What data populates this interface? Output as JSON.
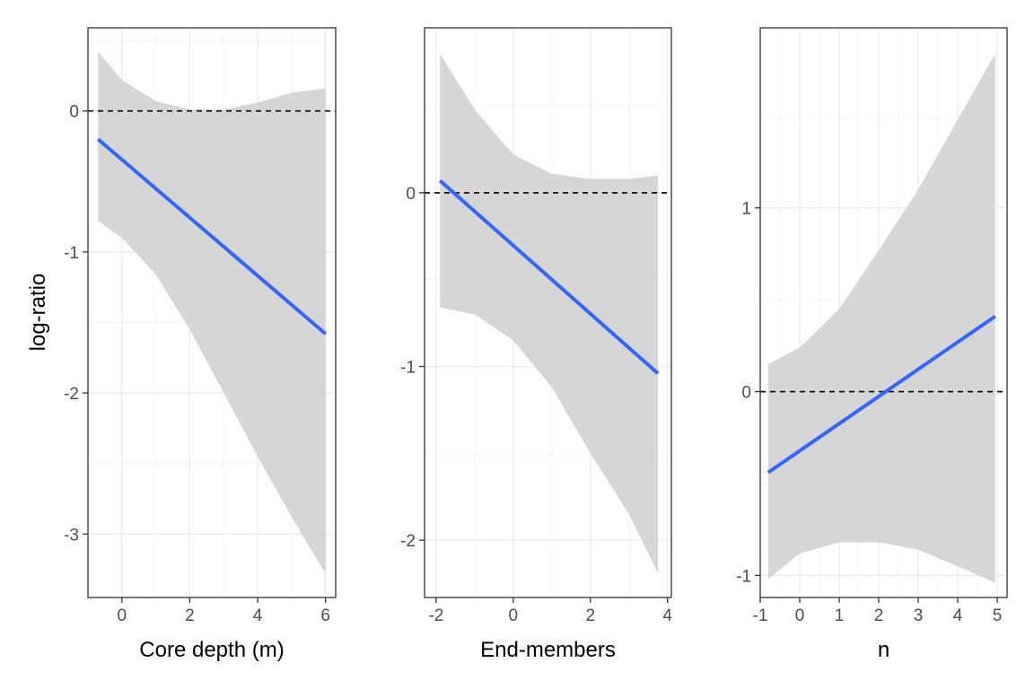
{
  "figure": {
    "ylabel": "log-ratio"
  },
  "colors": {
    "line": "#3366ff",
    "ribbon": "#d6d6d6",
    "grid_major": "#ebebeb",
    "grid_minor": "#f4f4f4",
    "reference": "#000000",
    "border": "#333333"
  },
  "chart_data": [
    {
      "type": "line",
      "xlabel": "Core depth (m)",
      "ylabel": "log-ratio",
      "xlim": [
        -1.0,
        6.3
      ],
      "ylim": [
        -3.45,
        0.59
      ],
      "xticks": [
        0,
        2,
        4,
        6
      ],
      "xtick_labels": [
        "0",
        "2",
        "4",
        "6"
      ],
      "yticks": [
        0,
        -1,
        -2,
        -3
      ],
      "ytick_labels": [
        "0",
        "-1",
        "-2",
        "-3"
      ],
      "xminor": [
        -1,
        1,
        3,
        5
      ],
      "yminor": [
        0.5,
        -0.5,
        -1.5,
        -2.5
      ],
      "reference_y": 0,
      "series": [
        {
          "x": [
            -0.7,
            6.0
          ],
          "y": [
            -0.2,
            -1.58
          ]
        }
      ],
      "ribbon": {
        "x": [
          -0.7,
          0.0,
          1.0,
          2.0,
          3.0,
          4.0,
          5.0,
          6.0
        ],
        "upper": [
          0.42,
          0.22,
          0.07,
          0.01,
          0.01,
          0.06,
          0.13,
          0.16
        ],
        "lower": [
          -0.78,
          -0.9,
          -1.16,
          -1.55,
          -2.0,
          -2.45,
          -2.88,
          -3.28
        ]
      }
    },
    {
      "type": "line",
      "xlabel": "End-members",
      "ylabel": "",
      "xlim": [
        -2.3,
        4.1
      ],
      "ylim": [
        -2.33,
        0.95
      ],
      "xticks": [
        -2,
        0,
        2,
        4
      ],
      "xtick_labels": [
        "-2",
        "0",
        "2",
        "4"
      ],
      "yticks": [
        0,
        -1,
        -2
      ],
      "ytick_labels": [
        "0",
        "-1",
        "-2"
      ],
      "xminor": [
        -1,
        1,
        3
      ],
      "yminor": [
        0.5,
        -0.5,
        -1.5
      ],
      "reference_y": 0,
      "series": [
        {
          "x": [
            -1.9,
            3.75
          ],
          "y": [
            0.07,
            -1.04
          ]
        }
      ],
      "ribbon": {
        "x": [
          -1.9,
          -1.0,
          0.0,
          1.0,
          2.0,
          3.0,
          3.75
        ],
        "upper": [
          0.8,
          0.48,
          0.22,
          0.11,
          0.08,
          0.08,
          0.1
        ],
        "lower": [
          -0.66,
          -0.7,
          -0.85,
          -1.12,
          -1.5,
          -1.85,
          -2.19
        ]
      }
    },
    {
      "type": "line",
      "xlabel": "n",
      "ylabel": "",
      "xlim": [
        -1.0,
        5.25
      ],
      "ylim": [
        -1.12,
        1.98
      ],
      "xticks": [
        -1,
        0,
        1,
        2,
        3,
        4,
        5
      ],
      "xtick_labels": [
        "-1",
        "0",
        "1",
        "2",
        "3",
        "4",
        "5"
      ],
      "yticks": [
        1,
        0,
        -1
      ],
      "ytick_labels": [
        "1",
        "0",
        "-1"
      ],
      "xminor": [
        -0.5,
        0.5,
        1.5,
        2.5,
        3.5,
        4.5
      ],
      "yminor": [
        1.5,
        0.5,
        -0.5
      ],
      "reference_y": 0,
      "series": [
        {
          "x": [
            -0.8,
            4.95
          ],
          "y": [
            -0.44,
            0.41
          ]
        }
      ],
      "ribbon": {
        "x": [
          -0.8,
          0.0,
          1.0,
          2.0,
          3.0,
          4.0,
          4.95
        ],
        "upper": [
          0.15,
          0.24,
          0.45,
          0.77,
          1.1,
          1.48,
          1.84
        ],
        "lower": [
          -1.02,
          -0.88,
          -0.82,
          -0.82,
          -0.86,
          -0.95,
          -1.04
        ]
      }
    }
  ]
}
